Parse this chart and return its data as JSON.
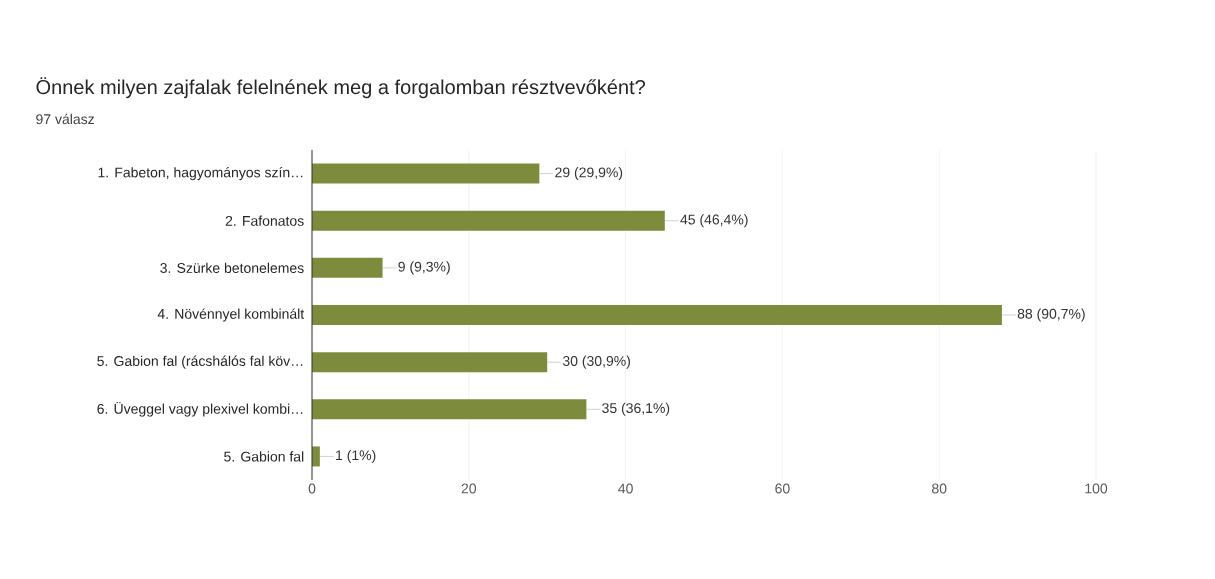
{
  "chart_data": {
    "type": "bar",
    "orientation": "horizontal",
    "title": "Önnek milyen zajfalak felelnének meg a forgalomban résztvevőként?",
    "subtitle": "97 válasz",
    "categories": [
      "1. Fabeton, hagyományos szín…",
      "2. Fafonatos",
      "3. Szürke betonelemes",
      "4. Növénnyel kombinált",
      "5. Gabion fal (rácshálós fal köv…",
      "6. Üveggel vagy plexivel kombi…",
      "5. Gabion fal"
    ],
    "values": [
      29,
      45,
      9,
      88,
      30,
      35,
      1
    ],
    "value_labels": [
      "29 (29,9%)",
      "45 (46,4%)",
      "9 (9,3%)",
      "88 (90,7%)",
      "30 (30,9%)",
      "35 (36,1%)",
      "1 (1%)"
    ],
    "color": "#7d8c3c",
    "xlim": [
      0,
      100
    ],
    "xticks": [
      0,
      20,
      40,
      60,
      80,
      100
    ],
    "grid": "x"
  }
}
